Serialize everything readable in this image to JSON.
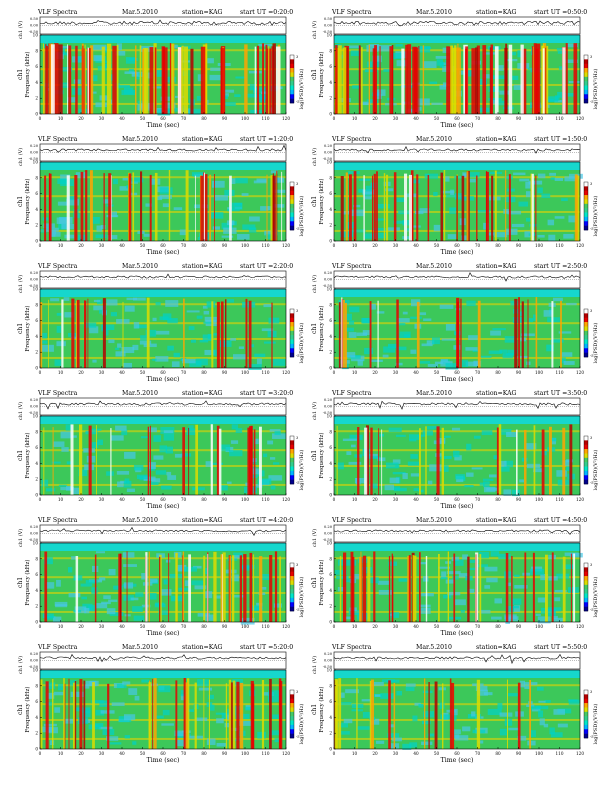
{
  "labels": {
    "header_left": "VLF Spectra",
    "date": "Mar.5.2010",
    "station": "station=KAG",
    "start_prefix": "start  UT",
    "waveform_ylabel": "ch1 (V)",
    "spectrogram_ylabel": "Frequency (kHz)",
    "ch_label": "ch1",
    "colorbar_label": "log(PSD)(V²/Hz)",
    "xlabel": "Time  (sec)"
  },
  "colors": {
    "scale": [
      "#00008c",
      "#0000ff",
      "#00b4ff",
      "#00e6c8",
      "#32cd8c",
      "#46c864",
      "#dcdc00",
      "#ffa500",
      "#e60000",
      "#b40000",
      "#ffffff"
    ],
    "band_green": "#3cc85a",
    "band_yellow": "#e6d200",
    "top_band": "#16d7cd"
  },
  "chart_data": [
    {
      "type": "heatmap",
      "start_ut": "=0:20:0",
      "activity": "high",
      "waveform_ticks": [
        "0.50",
        "0.00",
        "-0.50"
      ],
      "yticks": [
        0,
        2,
        4,
        6,
        8,
        10
      ],
      "ylim": [
        0,
        10
      ],
      "xticks": [
        0,
        10,
        20,
        30,
        40,
        50,
        60,
        70,
        80,
        90,
        100,
        110,
        120
      ],
      "xlim": [
        0,
        120
      ],
      "colorbar_ticks": [
        "3",
        "-5"
      ]
    },
    {
      "type": "heatmap",
      "start_ut": "=0:50:0",
      "activity": "high",
      "waveform_ticks": [
        "0.50",
        "0.00",
        "-0.50"
      ],
      "yticks": [
        0,
        2,
        4,
        6,
        8,
        10
      ],
      "ylim": [
        0,
        10
      ],
      "xticks": [
        0,
        10,
        20,
        30,
        40,
        50,
        60,
        70,
        80,
        90,
        100,
        110,
        120
      ],
      "xlim": [
        0,
        120
      ],
      "colorbar_ticks": [
        "3",
        "-5"
      ]
    },
    {
      "type": "heatmap",
      "start_ut": "=1:20:0",
      "activity": "medium",
      "waveform_ticks": [
        "0.20",
        "0.00",
        "-0.50"
      ],
      "yticks": [
        0,
        2,
        4,
        6,
        8,
        10
      ],
      "ylim": [
        0,
        10
      ],
      "xticks": [
        0,
        10,
        20,
        30,
        40,
        50,
        60,
        70,
        80,
        90,
        100,
        110,
        120
      ],
      "xlim": [
        0,
        120
      ],
      "colorbar_ticks": [
        "3",
        "-5"
      ]
    },
    {
      "type": "heatmap",
      "start_ut": "=1:50:0",
      "activity": "medium",
      "waveform_ticks": [
        "0.20",
        "0.00",
        "-0.50"
      ],
      "yticks": [
        0,
        2,
        4,
        6,
        8,
        10
      ],
      "ylim": [
        0,
        10
      ],
      "xticks": [
        0,
        10,
        20,
        30,
        40,
        50,
        60,
        70,
        80,
        90,
        100,
        110,
        120
      ],
      "xlim": [
        0,
        120
      ],
      "colorbar_ticks": [
        "3",
        "-5"
      ]
    },
    {
      "type": "heatmap",
      "start_ut": "=2:20:0",
      "activity": "low",
      "waveform_ticks": [
        "0.20",
        "0.00",
        "-0.50"
      ],
      "yticks": [
        0,
        2,
        4,
        6,
        8,
        10
      ],
      "ylim": [
        0,
        10
      ],
      "xticks": [
        0,
        10,
        20,
        30,
        40,
        50,
        60,
        70,
        80,
        90,
        100,
        110,
        120
      ],
      "xlim": [
        0,
        120
      ],
      "colorbar_ticks": [
        "3",
        "-5"
      ]
    },
    {
      "type": "heatmap",
      "start_ut": "=2:50:0",
      "activity": "low",
      "waveform_ticks": [
        "0.20",
        "0.00",
        "-0.50"
      ],
      "yticks": [
        0,
        2,
        4,
        6,
        8,
        10
      ],
      "ylim": [
        0,
        10
      ],
      "xticks": [
        0,
        10,
        20,
        30,
        40,
        50,
        60,
        70,
        80,
        90,
        100,
        110,
        120
      ],
      "xlim": [
        0,
        120
      ],
      "colorbar_ticks": [
        "3",
        "-5"
      ]
    },
    {
      "type": "heatmap",
      "start_ut": "=3:20:0",
      "activity": "low",
      "waveform_ticks": [
        "0.20",
        "0.00",
        "-0.50"
      ],
      "yticks": [
        0,
        2,
        4,
        6,
        8,
        10
      ],
      "ylim": [
        0,
        10
      ],
      "xticks": [
        0,
        10,
        20,
        30,
        40,
        50,
        60,
        70,
        80,
        90,
        100,
        110,
        120
      ],
      "xlim": [
        0,
        120
      ],
      "colorbar_ticks": [
        "3",
        "-5"
      ]
    },
    {
      "type": "heatmap",
      "start_ut": "=3:50:0",
      "activity": "low",
      "waveform_ticks": [
        "0.20",
        "0.00",
        "-0.50"
      ],
      "yticks": [
        0,
        2,
        4,
        6,
        8,
        10
      ],
      "ylim": [
        0,
        10
      ],
      "xticks": [
        0,
        10,
        20,
        30,
        40,
        50,
        60,
        70,
        80,
        90,
        100,
        110,
        120
      ],
      "xlim": [
        0,
        120
      ],
      "colorbar_ticks": [
        "3",
        "-5"
      ]
    },
    {
      "type": "heatmap",
      "start_ut": "=4:20:0",
      "activity": "medium",
      "waveform_ticks": [
        "0.20",
        "0.00",
        "-0.50"
      ],
      "yticks": [
        0,
        2,
        4,
        6,
        8,
        10
      ],
      "ylim": [
        0,
        10
      ],
      "xticks": [
        0,
        10,
        20,
        30,
        40,
        50,
        60,
        70,
        80,
        90,
        100,
        110,
        120
      ],
      "xlim": [
        0,
        120
      ],
      "colorbar_ticks": [
        "3",
        "-5"
      ]
    },
    {
      "type": "heatmap",
      "start_ut": "=4:50:0",
      "activity": "medium",
      "waveform_ticks": [
        "0.20",
        "0.00",
        "-0.50"
      ],
      "yticks": [
        0,
        2,
        4,
        6,
        8,
        10
      ],
      "ylim": [
        0,
        10
      ],
      "xticks": [
        0,
        10,
        20,
        30,
        40,
        50,
        60,
        70,
        80,
        90,
        100,
        110,
        120
      ],
      "xlim": [
        0,
        120
      ],
      "colorbar_ticks": [
        "3",
        "-5"
      ]
    },
    {
      "type": "heatmap",
      "start_ut": "=5:20:0",
      "activity": "medium",
      "waveform_ticks": [
        "0.20",
        "0.00",
        "-0.50"
      ],
      "yticks": [
        0,
        2,
        4,
        6,
        8,
        10
      ],
      "ylim": [
        0,
        10
      ],
      "xticks": [
        0,
        10,
        20,
        30,
        40,
        50,
        60,
        70,
        80,
        90,
        100,
        110,
        120
      ],
      "xlim": [
        0,
        120
      ],
      "colorbar_ticks": [
        "3",
        "-5"
      ]
    },
    {
      "type": "heatmap",
      "start_ut": "=5:50:0",
      "activity": "low",
      "waveform_ticks": [
        "0.20",
        "0.00",
        "-0.50"
      ],
      "yticks": [
        0,
        2,
        4,
        6,
        8,
        10
      ],
      "ylim": [
        0,
        10
      ],
      "xticks": [
        0,
        10,
        20,
        30,
        40,
        50,
        60,
        70,
        80,
        90,
        100,
        110,
        120
      ],
      "xlim": [
        0,
        120
      ],
      "colorbar_ticks": [
        "3",
        "-5"
      ]
    }
  ]
}
